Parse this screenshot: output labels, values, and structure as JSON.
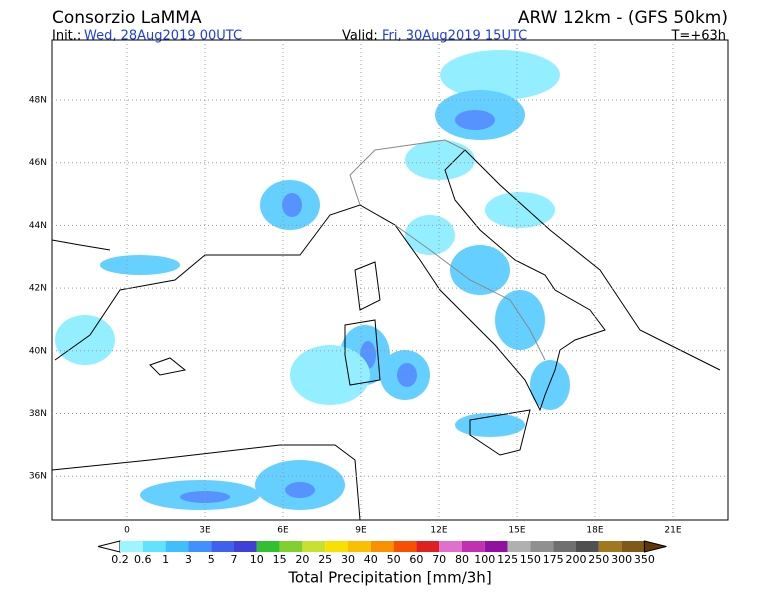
{
  "header": {
    "title": "Consorzio LaMMA",
    "model": "ARW 12km - (GFS 50km)",
    "init_label": "Init.:",
    "init": "Wed, 28Aug2019 00UTC",
    "valid_label": "Valid:",
    "valid": "Fri, 30Aug2019 15UTC",
    "lead": "T=+63h"
  },
  "map": {
    "lon_labels": [
      "0",
      "3E",
      "6E",
      "9E",
      "12E",
      "15E",
      "18E",
      "21E"
    ],
    "lat_labels": [
      "48N",
      "46N",
      "44N",
      "42N",
      "40N",
      "38N",
      "36N"
    ]
  },
  "colorbar": {
    "labels": [
      0.2,
      0.6,
      1,
      3,
      5,
      7,
      10,
      15,
      20,
      25,
      30,
      40,
      50,
      60,
      70,
      80,
      100,
      125,
      150,
      175,
      200,
      250,
      300,
      350
    ],
    "colors": [
      "#ffffff",
      "#9ff5ff",
      "#5fe3ff",
      "#40bfff",
      "#4090ff",
      "#4060f0",
      "#4040d8",
      "#30c030",
      "#80d030",
      "#c8e030",
      "#f8e000",
      "#f8c000",
      "#f89000",
      "#f85000",
      "#e02020",
      "#e070d0",
      "#c030b0",
      "#9010a0",
      "#b0b0b0",
      "#909090",
      "#707070",
      "#505050",
      "#a07820",
      "#805818",
      "#603808"
    ],
    "title": "Total Precipitation [mm/3h]"
  }
}
